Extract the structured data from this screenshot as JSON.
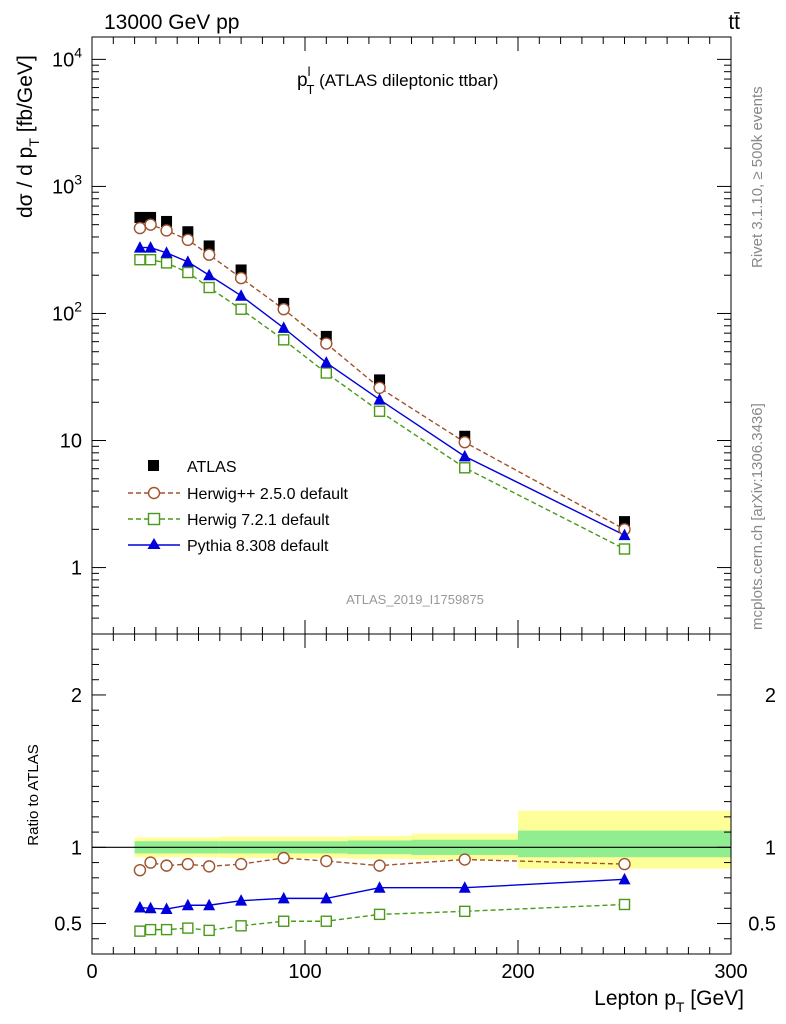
{
  "header": {
    "left_title": "13000 GeV pp",
    "right_title": "tt̄"
  },
  "side_labels": {
    "rivet": "Rivet 3.1.10, ≥ 500k events",
    "mcplots": "mcplots.cern.ch [arXiv:1306.3436]"
  },
  "chart_data": {
    "type": "scatter",
    "title_main": "p",
    "title_sup": "l",
    "title_sub": "T",
    "title_rest": " (ATLAS dileptonic ttbar)",
    "analysis_id": "ATLAS_2019_I1759875",
    "xlabel_main": "Lepton p",
    "xlabel_sub": "T",
    "xlabel_unit": " [GeV]",
    "ylabel_main": "dσ / d p",
    "ylabel_sub": "T",
    "ylabel_unit": " [fb/GeV]",
    "ratio_ylabel": "Ratio to ATLAS",
    "xlim": [
      0,
      300
    ],
    "ylim": [
      0.3,
      15000
    ],
    "yscale": "log",
    "ratio_ylim": [
      0.3,
      2.4
    ],
    "x_ticks": [
      0,
      100,
      200,
      300
    ],
    "x_tick_labels": [
      "0",
      "100",
      "200",
      "300"
    ],
    "y_ticks": [
      1,
      10,
      100,
      1000,
      10000
    ],
    "y_tick_labels": [
      {
        "base": "1",
        "exp": ""
      },
      {
        "base": "10",
        "exp": ""
      },
      {
        "base": "10",
        "exp": "2"
      },
      {
        "base": "10",
        "exp": "3"
      },
      {
        "base": "10",
        "exp": "4"
      }
    ],
    "ratio_ticks": [
      0.5,
      1,
      2
    ],
    "ratio_tick_labels": [
      "0.5",
      "1",
      "2"
    ],
    "bin_edges": [
      20,
      25,
      30,
      40,
      50,
      60,
      80,
      100,
      120,
      150,
      200,
      300
    ],
    "x": [
      22.5,
      27.5,
      35,
      45,
      55,
      70,
      90,
      110,
      135,
      175,
      250
    ],
    "series": [
      {
        "name": "ATLAS",
        "marker": "square-filled",
        "color": "#000000",
        "values": [
          570,
          570,
          530,
          440,
          340,
          220,
          120,
          66,
          30,
          10.8,
          2.3
        ]
      },
      {
        "name": "Herwig++ 2.5.0 default",
        "marker": "circle-open",
        "color": "#a0522d",
        "line": "dashed",
        "values": [
          470,
          500,
          450,
          380,
          290,
          190,
          108,
          58,
          26,
          9.7,
          2.0
        ],
        "ratio": [
          0.85,
          0.9,
          0.88,
          0.89,
          0.875,
          0.89,
          0.93,
          0.91,
          0.88,
          0.92,
          0.89
        ]
      },
      {
        "name": "Herwig 7.2.1 default",
        "marker": "square-open",
        "color": "#4a9a1a",
        "line": "dashed",
        "values": [
          265,
          265,
          250,
          210,
          160,
          108,
          62,
          34,
          17,
          6.1,
          1.4
        ],
        "ratio": [
          0.45,
          0.46,
          0.46,
          0.47,
          0.455,
          0.485,
          0.515,
          0.515,
          0.56,
          0.58,
          0.625
        ]
      },
      {
        "name": "Pythia 8.308 default",
        "marker": "triangle-filled",
        "color": "#0000dd",
        "line": "solid",
        "values": [
          330,
          330,
          300,
          255,
          200,
          138,
          77,
          41,
          21,
          7.5,
          1.8
        ],
        "ratio": [
          0.605,
          0.6,
          0.595,
          0.62,
          0.62,
          0.65,
          0.665,
          0.665,
          0.735,
          0.735,
          0.79
        ]
      }
    ],
    "ratio_band_inner": [
      {
        "x0": 20,
        "x1": 60,
        "lo": 0.96,
        "hi": 1.04
      },
      {
        "x0": 60,
        "x1": 120,
        "lo": 0.96,
        "hi": 1.04
      },
      {
        "x0": 120,
        "x1": 150,
        "lo": 0.955,
        "hi": 1.045
      },
      {
        "x0": 150,
        "x1": 200,
        "lo": 0.95,
        "hi": 1.05
      },
      {
        "x0": 200,
        "x1": 300,
        "lo": 0.935,
        "hi": 1.11
      }
    ],
    "ratio_band_outer": [
      {
        "x0": 20,
        "x1": 60,
        "lo": 0.935,
        "hi": 1.065
      },
      {
        "x0": 60,
        "x1": 120,
        "lo": 0.93,
        "hi": 1.07
      },
      {
        "x0": 120,
        "x1": 150,
        "lo": 0.925,
        "hi": 1.075
      },
      {
        "x0": 150,
        "x1": 200,
        "lo": 0.92,
        "hi": 1.09
      },
      {
        "x0": 200,
        "x1": 300,
        "lo": 0.86,
        "hi": 1.24
      }
    ],
    "legend_position": "lower-left",
    "colors": {
      "band_inner": "#90ee90",
      "band_outer": "#ffff99"
    }
  }
}
